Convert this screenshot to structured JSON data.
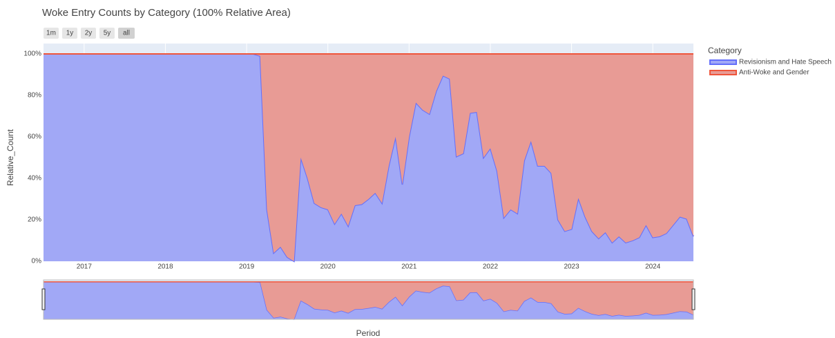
{
  "chart_data": {
    "type": "stacked_area",
    "title": "Woke Entry Counts by Category (100% Relative Area)",
    "range_buttons": [
      "1m",
      "1y",
      "2y",
      "5y",
      "all"
    ],
    "active_button": "all",
    "xlabel": "Period",
    "ylabel": "Relative_Count",
    "legend_title": "Category",
    "x": [
      "2016-07",
      "2016-08",
      "2016-09",
      "2016-10",
      "2016-11",
      "2016-12",
      "2017-01",
      "2017-02",
      "2017-03",
      "2017-04",
      "2017-05",
      "2017-06",
      "2017-07",
      "2017-08",
      "2017-09",
      "2017-10",
      "2017-11",
      "2017-12",
      "2018-01",
      "2018-02",
      "2018-03",
      "2018-04",
      "2018-05",
      "2018-06",
      "2018-07",
      "2018-08",
      "2018-09",
      "2018-10",
      "2018-11",
      "2018-12",
      "2019-01",
      "2019-02",
      "2019-03",
      "2019-04",
      "2019-05",
      "2019-06",
      "2019-07",
      "2019-08",
      "2019-09",
      "2019-10",
      "2019-11",
      "2019-12",
      "2020-01",
      "2020-02",
      "2020-03",
      "2020-04",
      "2020-05",
      "2020-06",
      "2020-07",
      "2020-08",
      "2020-09",
      "2020-10",
      "2020-11",
      "2020-12",
      "2021-01",
      "2021-02",
      "2021-03",
      "2021-04",
      "2021-05",
      "2021-06",
      "2021-07",
      "2021-08",
      "2021-09",
      "2021-10",
      "2021-11",
      "2021-12",
      "2022-01",
      "2022-02",
      "2022-03",
      "2022-04",
      "2022-05",
      "2022-06",
      "2022-07",
      "2022-08",
      "2022-09",
      "2022-10",
      "2022-11",
      "2022-12",
      "2023-01",
      "2023-02",
      "2023-03",
      "2023-04",
      "2023-05",
      "2023-06",
      "2023-07",
      "2023-08",
      "2023-09",
      "2023-10",
      "2023-11",
      "2023-12",
      "2024-01",
      "2024-02",
      "2024-03",
      "2024-04",
      "2024-05",
      "2024-06",
      "2024-07"
    ],
    "series": [
      {
        "name": "Revisionism and Hate Speech",
        "color": "#636efa",
        "fill": "#a1a8f6",
        "values": [
          100,
          100,
          100,
          100,
          100,
          100,
          100,
          100,
          100,
          100,
          100,
          100,
          100,
          100,
          100,
          100,
          100,
          100,
          100,
          100,
          100,
          100,
          100,
          100,
          100,
          100,
          100,
          100,
          100,
          100,
          100,
          100,
          99,
          25,
          4,
          7,
          2,
          0,
          50,
          40,
          28,
          26,
          25,
          18,
          23,
          17,
          27,
          27.5,
          30,
          33,
          28,
          46,
          60,
          37,
          60,
          76.5,
          73,
          71,
          82,
          89.5,
          88,
          50.5,
          52,
          71.5,
          72,
          50,
          54.5,
          43.5,
          21,
          25,
          23,
          48.5,
          58,
          46,
          46,
          42.5,
          20,
          14.5,
          15.5,
          30.5,
          21.5,
          14.5,
          11,
          14,
          9,
          12,
          9,
          10,
          11.5,
          17.5,
          11.5,
          12,
          13.5,
          17.5,
          21.5,
          20.5,
          12
        ]
      },
      {
        "name": "Anti-Woke and Gender",
        "color": "#ef553b",
        "fill": "#e89b95",
        "values": [
          0,
          0,
          0,
          0,
          0,
          0,
          0,
          0,
          0,
          0,
          0,
          0,
          0,
          0,
          0,
          0,
          0,
          0,
          0,
          0,
          0,
          0,
          0,
          0,
          0,
          0,
          0,
          0,
          0,
          0,
          0,
          0,
          1,
          75,
          96,
          93,
          98,
          100,
          50,
          60,
          72,
          74,
          75,
          82,
          77,
          83,
          73,
          72.5,
          70,
          67,
          72,
          54,
          40,
          63,
          40,
          23.5,
          27,
          29,
          18,
          10.5,
          12,
          49.5,
          48,
          28.5,
          28,
          50,
          45.5,
          56.5,
          79,
          75,
          77,
          51.5,
          42,
          54,
          54,
          57.5,
          80,
          85.5,
          84.5,
          69.5,
          78.5,
          85.5,
          89,
          86,
          91,
          88,
          91,
          90,
          88.5,
          82.5,
          88.5,
          88,
          86.5,
          82.5,
          78.5,
          79.5,
          88
        ]
      }
    ],
    "xlim": [
      "2016-07",
      "2024-07"
    ],
    "xticks": [
      "2017",
      "2018",
      "2019",
      "2020",
      "2021",
      "2022",
      "2023",
      "2024"
    ],
    "ylim": [
      0,
      105
    ],
    "yticks": [
      {
        "value": 0,
        "label": "0%"
      },
      {
        "value": 20,
        "label": "20%"
      },
      {
        "value": 40,
        "label": "40%"
      },
      {
        "value": 60,
        "label": "60%"
      },
      {
        "value": 80,
        "label": "80%"
      },
      {
        "value": 100,
        "label": "100%"
      }
    ],
    "grid": true,
    "legend": "right",
    "rangeslider": true
  }
}
